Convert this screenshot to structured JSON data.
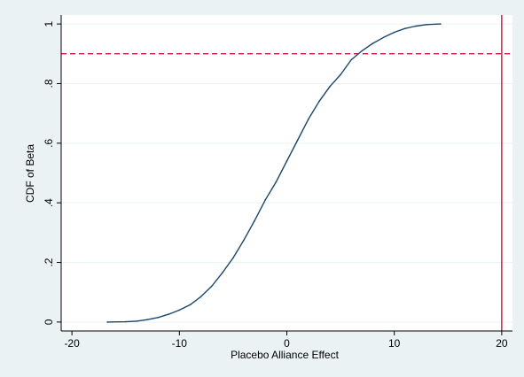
{
  "chart_data": {
    "type": "line",
    "title": "",
    "xlabel": "Placebo Alliance Effect",
    "ylabel": "CDF of Beta",
    "xlim": [
      -21,
      21
    ],
    "ylim": [
      -0.03,
      1.03
    ],
    "x_ticks": [
      {
        "value": -20,
        "label": "-20"
      },
      {
        "value": -10,
        "label": "-10"
      },
      {
        "value": 0,
        "label": "0"
      },
      {
        "value": 10,
        "label": "10"
      },
      {
        "value": 20,
        "label": "20"
      }
    ],
    "y_ticks": [
      {
        "value": 0,
        "label": "0"
      },
      {
        "value": 0.2,
        "label": ".2"
      },
      {
        "value": 0.4,
        "label": ".4"
      },
      {
        "value": 0.6,
        "label": ".6"
      },
      {
        "value": 0.8,
        "label": ".8"
      },
      {
        "value": 1,
        "label": "1"
      }
    ],
    "grid": "horizontal",
    "series": [
      {
        "color": "#1a476f",
        "x": [
          -16.7,
          -15,
          -14,
          -13,
          -12,
          -11,
          -10,
          -9,
          -8,
          -7,
          -6,
          -5,
          -4,
          -3,
          -2,
          -1,
          0,
          1,
          2,
          3,
          4,
          5,
          6,
          7,
          8,
          9,
          10,
          11,
          12,
          13,
          14.3
        ],
        "y": [
          0.0,
          0.001,
          0.003,
          0.008,
          0.015,
          0.026,
          0.04,
          0.058,
          0.085,
          0.12,
          0.165,
          0.215,
          0.275,
          0.34,
          0.41,
          0.47,
          0.54,
          0.61,
          0.68,
          0.74,
          0.79,
          0.83,
          0.88,
          0.91,
          0.935,
          0.955,
          0.972,
          0.985,
          0.993,
          0.998,
          1.0
        ]
      }
    ],
    "reference_lines": [
      {
        "orientation": "horizontal",
        "value": 0.9,
        "style": "dashed",
        "color": "#c20033"
      },
      {
        "orientation": "vertical",
        "value": 20,
        "style": "solid",
        "color": "#c20033"
      }
    ]
  }
}
